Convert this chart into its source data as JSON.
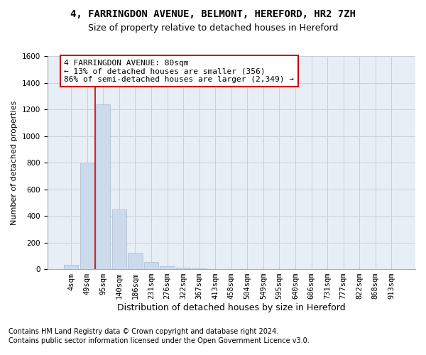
{
  "title1": "4, FARRINGDON AVENUE, BELMONT, HEREFORD, HR2 7ZH",
  "title2": "Size of property relative to detached houses in Hereford",
  "xlabel": "Distribution of detached houses by size in Hereford",
  "ylabel": "Number of detached properties",
  "footnote1": "Contains HM Land Registry data © Crown copyright and database right 2024.",
  "footnote2": "Contains public sector information licensed under the Open Government Licence v3.0.",
  "bar_labels": [
    "4sqm",
    "49sqm",
    "95sqm",
    "140sqm",
    "186sqm",
    "231sqm",
    "276sqm",
    "322sqm",
    "367sqm",
    "413sqm",
    "458sqm",
    "504sqm",
    "549sqm",
    "595sqm",
    "640sqm",
    "686sqm",
    "731sqm",
    "777sqm",
    "822sqm",
    "868sqm",
    "913sqm"
  ],
  "bar_values": [
    30,
    800,
    1240,
    450,
    125,
    55,
    20,
    10,
    5,
    0,
    0,
    0,
    0,
    0,
    0,
    0,
    0,
    0,
    0,
    0,
    0
  ],
  "bar_color": "#ccdaeb",
  "bar_edgecolor": "#aabcce",
  "vline_color": "#cc0000",
  "annotation_text": "4 FARRINGDON AVENUE: 80sqm\n← 13% of detached houses are smaller (356)\n86% of semi-detached houses are larger (2,349) →",
  "annotation_box_facecolor": "#ffffff",
  "annotation_box_edgecolor": "#cc0000",
  "ylim": [
    0,
    1600
  ],
  "yticks": [
    0,
    200,
    400,
    600,
    800,
    1000,
    1200,
    1400,
    1600
  ],
  "grid_color": "#c8d0dc",
  "background_color": "#e8eef6",
  "title1_fontsize": 10,
  "title2_fontsize": 9,
  "xlabel_fontsize": 9,
  "ylabel_fontsize": 8,
  "tick_fontsize": 7.5,
  "annotation_fontsize": 8,
  "footnote_fontsize": 7
}
